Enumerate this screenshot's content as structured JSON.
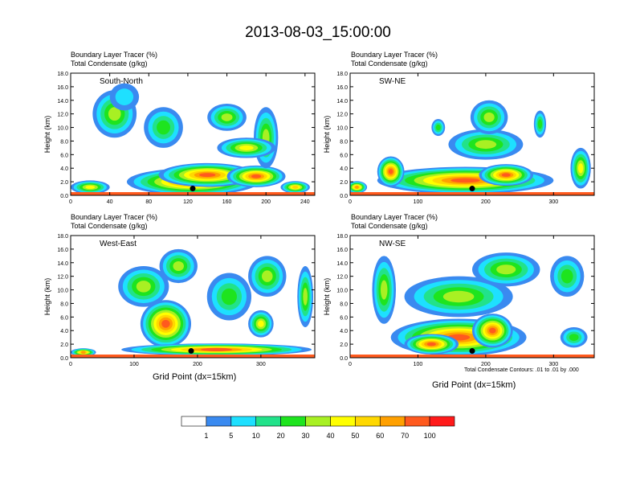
{
  "figure": {
    "title": "2013-08-03_15:00:00",
    "x_axis_title": "Grid Point (dx=15km)",
    "contour_note": "Total Condensate Contours: .01 to .01 by .000"
  },
  "chart_data": [
    {
      "type": "heatmap",
      "panel": "South-North",
      "title_lines": [
        "Boundary Layer Tracer    (%)",
        "Total Condensate    (g/kg)"
      ],
      "ylabel": "Height (km)",
      "xlim": [
        0,
        250
      ],
      "ylim": [
        0,
        18
      ],
      "xticks": [
        0,
        40,
        80,
        120,
        160,
        200,
        240
      ],
      "yticks": [
        0.0,
        2.0,
        4.0,
        6.0,
        8.0,
        10.0,
        12.0,
        14.0,
        16.0,
        18.0
      ],
      "marker": {
        "x": 125,
        "y": 1.0
      },
      "blobs": [
        {
          "x": 125,
          "y": 2.0,
          "w": 135,
          "h": 4.0,
          "v": 75
        },
        {
          "x": 140,
          "y": 3.0,
          "w": 100,
          "h": 3.5,
          "v": 85
        },
        {
          "x": 190,
          "y": 2.8,
          "w": 60,
          "h": 3.2,
          "v": 75
        },
        {
          "x": 20,
          "y": 1.2,
          "w": 40,
          "h": 2.0,
          "v": 45
        },
        {
          "x": 45,
          "y": 12.0,
          "w": 45,
          "h": 7.0,
          "v": 30
        },
        {
          "x": 55,
          "y": 14.5,
          "w": 30,
          "h": 4.0,
          "v": 8
        },
        {
          "x": 95,
          "y": 10.0,
          "w": 40,
          "h": 6.0,
          "v": 28
        },
        {
          "x": 160,
          "y": 11.5,
          "w": 40,
          "h": 4.0,
          "v": 35
        },
        {
          "x": 200,
          "y": 8.5,
          "w": 25,
          "h": 9.0,
          "v": 30
        },
        {
          "x": 180,
          "y": 7.0,
          "w": 60,
          "h": 3.0,
          "v": 40
        },
        {
          "x": 230,
          "y": 1.2,
          "w": 30,
          "h": 1.8,
          "v": 55
        }
      ]
    },
    {
      "type": "heatmap",
      "panel": "SW-NE",
      "title_lines": [
        "Boundary Layer Tracer    (%)",
        "Total Condensate    (g/kg)"
      ],
      "ylabel": "Height (km)",
      "xlim": [
        0,
        360
      ],
      "ylim": [
        0,
        18
      ],
      "xticks": [
        0,
        100,
        200,
        300
      ],
      "yticks": [
        0.0,
        2.0,
        4.0,
        6.0,
        8.0,
        10.0,
        12.0,
        14.0,
        16.0,
        18.0
      ],
      "marker": {
        "x": 180,
        "y": 1.0
      },
      "blobs": [
        {
          "x": 170,
          "y": 2.2,
          "w": 260,
          "h": 4.0,
          "v": 75
        },
        {
          "x": 60,
          "y": 3.5,
          "w": 40,
          "h": 4.5,
          "v": 80
        },
        {
          "x": 230,
          "y": 3.0,
          "w": 80,
          "h": 3.2,
          "v": 85
        },
        {
          "x": 200,
          "y": 7.5,
          "w": 110,
          "h": 4.5,
          "v": 30
        },
        {
          "x": 205,
          "y": 11.5,
          "w": 55,
          "h": 5.0,
          "v": 35
        },
        {
          "x": 130,
          "y": 10.0,
          "w": 20,
          "h": 2.5,
          "v": 25
        },
        {
          "x": 280,
          "y": 10.5,
          "w": 18,
          "h": 4.0,
          "v": 20
        },
        {
          "x": 340,
          "y": 4.0,
          "w": 30,
          "h": 6.0,
          "v": 45
        },
        {
          "x": 10,
          "y": 1.2,
          "w": 30,
          "h": 1.8,
          "v": 60
        }
      ]
    },
    {
      "type": "heatmap",
      "panel": "West-East",
      "title_lines": [
        "Boundary Layer Tracer    (%)",
        "Total Condensate    (g/kg)"
      ],
      "ylabel": "Height (km)",
      "xlim": [
        0,
        385
      ],
      "ylim": [
        0,
        18
      ],
      "xticks": [
        0,
        100,
        200,
        300
      ],
      "yticks": [
        0.0,
        2.0,
        4.0,
        6.0,
        8.0,
        10.0,
        12.0,
        14.0,
        16.0,
        18.0
      ],
      "marker": {
        "x": 190,
        "y": 1.0
      },
      "blobs": [
        {
          "x": 150,
          "y": 5.0,
          "w": 80,
          "h": 7.0,
          "v": 80
        },
        {
          "x": 230,
          "y": 1.2,
          "w": 300,
          "h": 1.8,
          "v": 85
        },
        {
          "x": 115,
          "y": 10.5,
          "w": 80,
          "h": 6.0,
          "v": 35
        },
        {
          "x": 170,
          "y": 13.5,
          "w": 60,
          "h": 5.0,
          "v": 30
        },
        {
          "x": 250,
          "y": 9.0,
          "w": 70,
          "h": 7.0,
          "v": 28
        },
        {
          "x": 310,
          "y": 12.0,
          "w": 60,
          "h": 6.0,
          "v": 32
        },
        {
          "x": 300,
          "y": 5.0,
          "w": 40,
          "h": 4.0,
          "v": 45
        },
        {
          "x": 370,
          "y": 9.0,
          "w": 25,
          "h": 9.0,
          "v": 35
        },
        {
          "x": 20,
          "y": 0.8,
          "w": 40,
          "h": 1.2,
          "v": 60
        }
      ]
    },
    {
      "type": "heatmap",
      "panel": "NW-SE",
      "title_lines": [
        "Boundary Layer Tracer    (%)",
        "Total Condensate    (g/kg)"
      ],
      "ylabel": "Height (km)",
      "xlim": [
        0,
        360
      ],
      "ylim": [
        0,
        18
      ],
      "xticks": [
        0,
        100,
        200,
        300
      ],
      "yticks": [
        0.0,
        2.0,
        4.0,
        6.0,
        8.0,
        10.0,
        12.0,
        14.0,
        16.0,
        18.0
      ],
      "marker": {
        "x": 180,
        "y": 1.0
      },
      "blobs": [
        {
          "x": 160,
          "y": 3.0,
          "w": 200,
          "h": 5.5,
          "v": 80
        },
        {
          "x": 210,
          "y": 4.0,
          "w": 60,
          "h": 5.0,
          "v": 90
        },
        {
          "x": 120,
          "y": 2.0,
          "w": 80,
          "h": 3.0,
          "v": 95
        },
        {
          "x": 50,
          "y": 10.0,
          "w": 35,
          "h": 10.0,
          "v": 35
        },
        {
          "x": 160,
          "y": 9.0,
          "w": 160,
          "h": 6.0,
          "v": 30
        },
        {
          "x": 230,
          "y": 13.0,
          "w": 100,
          "h": 5.0,
          "v": 30
        },
        {
          "x": 320,
          "y": 12.0,
          "w": 50,
          "h": 6.0,
          "v": 25
        },
        {
          "x": 330,
          "y": 3.0,
          "w": 40,
          "h": 3.0,
          "v": 20
        }
      ]
    }
  ],
  "colorbar": {
    "labels": [
      "1",
      "5",
      "10",
      "20",
      "30",
      "40",
      "50",
      "60",
      "70",
      "100"
    ],
    "levels": [
      1,
      5,
      10,
      20,
      30,
      40,
      50,
      60,
      70,
      100
    ],
    "colors": [
      "#ffffff",
      "#3a8af0",
      "#1ee0ff",
      "#22e28a",
      "#1ee41e",
      "#a8f023",
      "#ffff00",
      "#ffd800",
      "#ffa000",
      "#ff5a1e",
      "#ff1a1a"
    ]
  }
}
